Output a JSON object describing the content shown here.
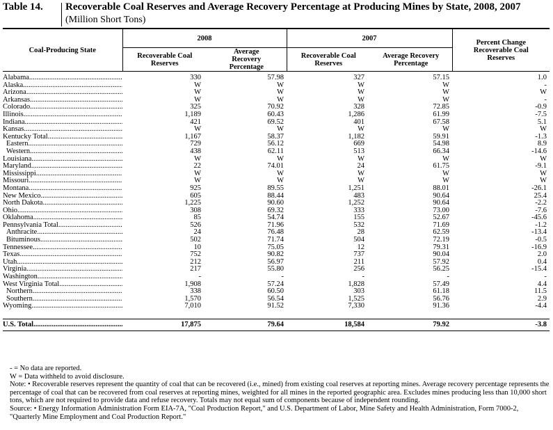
{
  "title": {
    "number": "Table 14.",
    "text": "Recoverable Coal Reserves and Average Recovery Percentage at Producing Mines by State, 2008, 2007",
    "subtitle": "(Million Short Tons)"
  },
  "headers": {
    "state": "Coal-Producing State",
    "year2008": "2008",
    "year2007": "2007",
    "pct_change": "Percent Change Recoverable Coal Reserves",
    "rec_reserves": "Recoverable Coal Reserves",
    "avg_recovery": "Average Recovery Percentage"
  },
  "rows": [
    {
      "state": "Alabama",
      "r08": "330",
      "p08": "57.98",
      "r07": "327",
      "p07": "57.15",
      "chg": "1.0",
      "sub": false
    },
    {
      "state": "Alaska",
      "r08": "W",
      "p08": "W",
      "r07": "W",
      "p07": "W",
      "chg": "-",
      "sub": false
    },
    {
      "state": "Arizona",
      "r08": "W",
      "p08": "W",
      "r07": "W",
      "p07": "W",
      "chg": "W",
      "sub": false
    },
    {
      "state": "Arkansas",
      "r08": "W",
      "p08": "W",
      "r07": "W",
      "p07": "W",
      "chg": "-",
      "sub": false
    },
    {
      "state": "Colorado",
      "r08": "325",
      "p08": "70.92",
      "r07": "328",
      "p07": "72.85",
      "chg": "-0.9",
      "sub": false
    },
    {
      "state": "Illinois",
      "r08": "1,189",
      "p08": "60.43",
      "r07": "1,286",
      "p07": "61.99",
      "chg": "-7.5",
      "sub": false
    },
    {
      "state": "Indiana",
      "r08": "421",
      "p08": "69.52",
      "r07": "401",
      "p07": "67.58",
      "chg": "5.1",
      "sub": false
    },
    {
      "state": "Kansas",
      "r08": "W",
      "p08": "W",
      "r07": "W",
      "p07": "W",
      "chg": "W",
      "sub": false
    },
    {
      "state": "Kentucky Total",
      "r08": "1,167",
      "p08": "58.37",
      "r07": "1,182",
      "p07": "59.91",
      "chg": "-1.3",
      "sub": false
    },
    {
      "state": "Eastern",
      "r08": "729",
      "p08": "56.12",
      "r07": "669",
      "p07": "54.98",
      "chg": "8.9",
      "sub": true
    },
    {
      "state": "Western",
      "r08": "438",
      "p08": "62.11",
      "r07": "513",
      "p07": "66.34",
      "chg": "-14.6",
      "sub": true
    },
    {
      "state": "Louisiana",
      "r08": "W",
      "p08": "W",
      "r07": "W",
      "p07": "W",
      "chg": "W",
      "sub": false
    },
    {
      "state": "Maryland",
      "r08": "22",
      "p08": "74.01",
      "r07": "24",
      "p07": "61.75",
      "chg": "-9.1",
      "sub": false
    },
    {
      "state": "Mississippi",
      "r08": "W",
      "p08": "W",
      "r07": "W",
      "p07": "W",
      "chg": "W",
      "sub": false
    },
    {
      "state": "Missouri",
      "r08": "W",
      "p08": "W",
      "r07": "W",
      "p07": "W",
      "chg": "W",
      "sub": false
    },
    {
      "state": "Montana",
      "r08": "925",
      "p08": "89.55",
      "r07": "1,251",
      "p07": "88.01",
      "chg": "-26.1",
      "sub": false
    },
    {
      "state": "New Mexico",
      "r08": "605",
      "p08": "88.44",
      "r07": "483",
      "p07": "90.64",
      "chg": "25.4",
      "sub": false
    },
    {
      "state": "North Dakota",
      "r08": "1,225",
      "p08": "90.60",
      "r07": "1,252",
      "p07": "90.64",
      "chg": "-2.2",
      "sub": false
    },
    {
      "state": "Ohio",
      "r08": "308",
      "p08": "69.32",
      "r07": "333",
      "p07": "73.00",
      "chg": "-7.6",
      "sub": false
    },
    {
      "state": "Oklahoma",
      "r08": "85",
      "p08": "54.74",
      "r07": "155",
      "p07": "52.67",
      "chg": "-45.6",
      "sub": false
    },
    {
      "state": "Pennsylvania Total",
      "r08": "526",
      "p08": "71.96",
      "r07": "532",
      "p07": "71.69",
      "chg": "-1.2",
      "sub": false
    },
    {
      "state": "Anthracite",
      "r08": "24",
      "p08": "76.48",
      "r07": "28",
      "p07": "62.59",
      "chg": "-13.4",
      "sub": true
    },
    {
      "state": "Bituminous",
      "r08": "502",
      "p08": "71.74",
      "r07": "504",
      "p07": "72.19",
      "chg": "-0.5",
      "sub": true
    },
    {
      "state": "Tennessee",
      "r08": "10",
      "p08": "75.05",
      "r07": "12",
      "p07": "79.31",
      "chg": "-16.9",
      "sub": false
    },
    {
      "state": "Texas",
      "r08": "752",
      "p08": "90.82",
      "r07": "737",
      "p07": "90.04",
      "chg": "2.0",
      "sub": false
    },
    {
      "state": "Utah",
      "r08": "212",
      "p08": "56.97",
      "r07": "211",
      "p07": "57.92",
      "chg": "0.4",
      "sub": false
    },
    {
      "state": "Virginia",
      "r08": "217",
      "p08": "55.80",
      "r07": "256",
      "p07": "56.25",
      "chg": "-15.4",
      "sub": false
    },
    {
      "state": "Washington",
      "r08": "-",
      "p08": "-",
      "r07": "-",
      "p07": "-",
      "chg": "-",
      "sub": false
    },
    {
      "state": "West Virginia Total",
      "r08": "1,908",
      "p08": "57.24",
      "r07": "1,828",
      "p07": "57.49",
      "chg": "4.4",
      "sub": false
    },
    {
      "state": "Northern",
      "r08": "338",
      "p08": "60.50",
      "r07": "303",
      "p07": "61.18",
      "chg": "11.5",
      "sub": true
    },
    {
      "state": "Southern",
      "r08": "1,570",
      "p08": "56.54",
      "r07": "1,525",
      "p07": "56.76",
      "chg": "2.9",
      "sub": true
    },
    {
      "state": "Wyoming",
      "r08": "7,010",
      "p08": "91.52",
      "r07": "7,330",
      "p07": "91.36",
      "chg": "-4.4",
      "sub": false
    }
  ],
  "total": {
    "state": "U.S. Total",
    "r08": "17,875",
    "p08": "79.64",
    "r07": "18,584",
    "p07": "79.92",
    "chg": "-3.8"
  },
  "notes": {
    "legend_dash": "- = No data are reported.",
    "legend_w": "W = Data withheld to avoid disclosure.",
    "note": "Note: • Recoverable reserves represent the quantity of coal that can be recovered (i.e., mined) from existing coal reserves at reporting mines.  Average recovery percentage represents the percentage of coal that can be recovered from coal reserves at reporting mines, weighted for all mines in the reported geographic area.  Excludes mines producing less than 10,000 short tons, which are not required to provide data and refuse recovery.  Totals may not equal sum of components because of independent rounding.",
    "source": "Source: • Energy Information Administration Form EIA-7A, \"Coal Production Report,\" and U.S. Department of Labor, Mine Safety and Health Administration, Form 7000-2, \"Quarterly Mine Employment and Coal Production Report.\""
  }
}
